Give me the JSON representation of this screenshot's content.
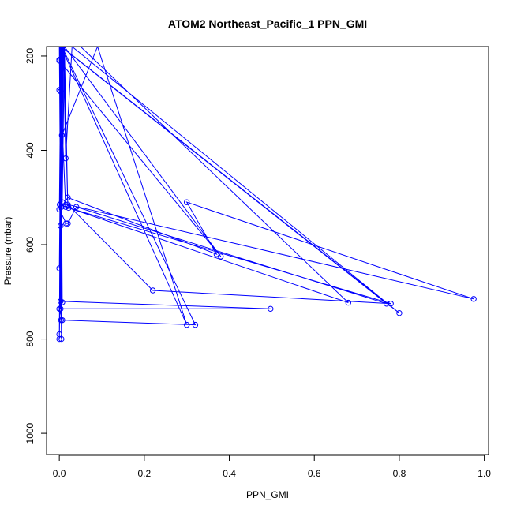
{
  "chart_data": {
    "type": "line",
    "title": "ATOM2 Northeast_Pacific_1 PPN_GMI",
    "xlabel": "PPN_GMI",
    "ylabel": "Pressure (mbar)",
    "xlim": [
      -0.03,
      1.01
    ],
    "ylim": [
      1045,
      180
    ],
    "y_reversed": true,
    "x_ticks": [
      0.0,
      0.2,
      0.4,
      0.6,
      0.8,
      1.0
    ],
    "x_tick_labels": [
      "0.0",
      "0.2",
      "0.4",
      "0.6",
      "0.8",
      "1.0"
    ],
    "y_ticks": [
      200,
      400,
      600,
      800,
      1000
    ],
    "y_tick_labels": [
      "200",
      "400",
      "600",
      "800",
      "1000"
    ],
    "grid": false,
    "legend": "none",
    "color": "#0000ff",
    "series": [
      {
        "x": [
          0.0,
          0.003,
          0.006,
          0.009,
          0.012,
          0.0,
          0.003,
          0.006,
          0.09,
          0.3,
          0.004,
          0.002,
          0.0,
          0.01,
          0.015,
          0.03,
          0.8,
          0.005,
          0.007,
          0.012,
          0.02,
          0.01,
          0.002,
          0.004,
          0.0,
          0.016,
          0.02,
          0.04,
          0.77,
          0.004,
          0.0,
          0.01,
          0.003,
          0.005,
          0.0,
          0.008,
          0.05,
          0.68,
          0.022,
          0.001,
          0.005,
          0.02,
          0.37,
          0.3,
          0.975,
          0.02,
          0.22,
          0.78,
          0.015,
          0.0,
          0.38,
          0.012,
          0.003,
          0.497,
          0.0,
          0.007,
          0.32,
          0.006,
          0.004,
          0.003,
          0.007,
          0.002,
          0.003,
          0.004,
          0.0,
          0.005,
          0.005,
          0.0
        ],
        "y": [
          180,
          180,
          180,
          180,
          180,
          272,
          275,
          368,
          180,
          770,
          180,
          180,
          208,
          180,
          417,
          180,
          745,
          180,
          510,
          180,
          518,
          180,
          515,
          180,
          525,
          555,
          555,
          520,
          725,
          180,
          800,
          180,
          560,
          180,
          650,
          180,
          180,
          723,
          522,
          515,
          520,
          500,
          620,
          510,
          715,
          515,
          697,
          725,
          520,
          210,
          625,
          180,
          720,
          736,
          736,
          760,
          770,
          180,
          760,
          180,
          722,
          180,
          736,
          180,
          790,
          180,
          800,
          180
        ]
      }
    ]
  }
}
